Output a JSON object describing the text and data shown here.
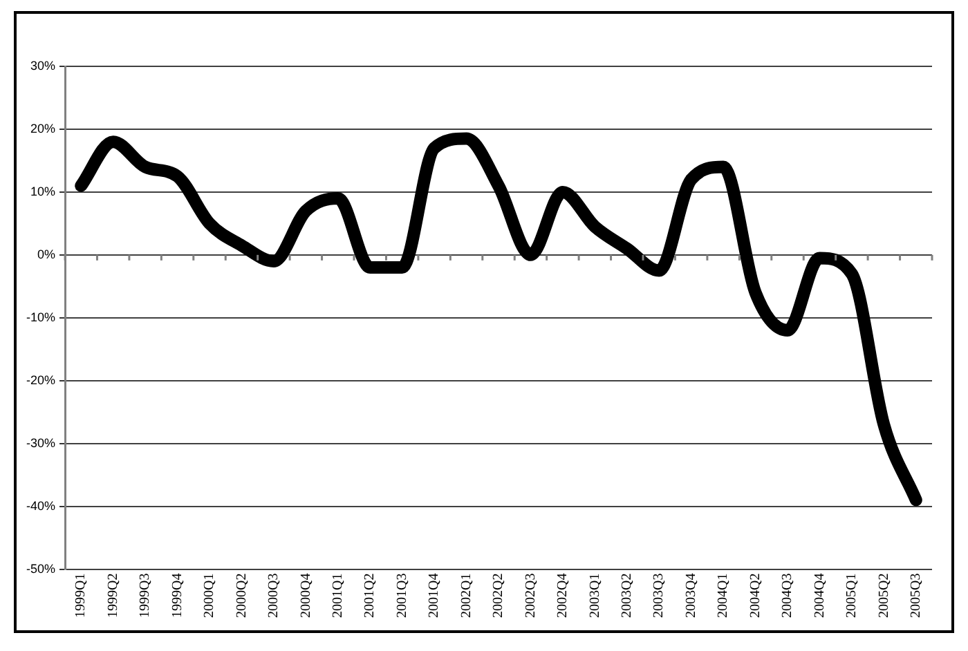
{
  "chart_data": {
    "type": "line",
    "categories": [
      "1999Q1",
      "1999Q2",
      "1999Q3",
      "1999Q4",
      "2000Q1",
      "2000Q2",
      "2000Q3",
      "2000Q4",
      "2001Q1",
      "2001Q2",
      "2001Q3",
      "2001Q4",
      "2002Q1",
      "2002Q2",
      "2002Q3",
      "2002Q4",
      "2003Q1",
      "2003Q2",
      "2003Q3",
      "2003Q4",
      "2004Q1",
      "2004Q2",
      "2004Q3",
      "2004Q4",
      "2005Q1",
      "2005Q2",
      "2005Q3"
    ],
    "series": [
      {
        "color": "#000000",
        "values": [
          11,
          18,
          14,
          12.5,
          5,
          1.5,
          -1,
          7,
          9,
          -2,
          -2,
          17,
          18.5,
          11,
          0,
          10,
          4.5,
          1,
          -2.5,
          12,
          14,
          -6,
          -12,
          -0.5,
          -3,
          -27,
          -39
        ]
      }
    ],
    "ylim": [
      -50,
      30
    ],
    "yticks": [
      {
        "value": -50,
        "label": "-50%"
      },
      {
        "value": -40,
        "label": "-40%"
      },
      {
        "value": -30,
        "label": "-30%"
      },
      {
        "value": -20,
        "label": "-20%"
      },
      {
        "value": -10,
        "label": "-10%"
      },
      {
        "value": 0,
        "label": "0%"
      },
      {
        "value": 10,
        "label": "10%"
      },
      {
        "value": 20,
        "label": "20%"
      },
      {
        "value": 30,
        "label": "30%"
      }
    ],
    "grid": "y",
    "legend": false,
    "marker": "none",
    "line_style": "solid"
  }
}
